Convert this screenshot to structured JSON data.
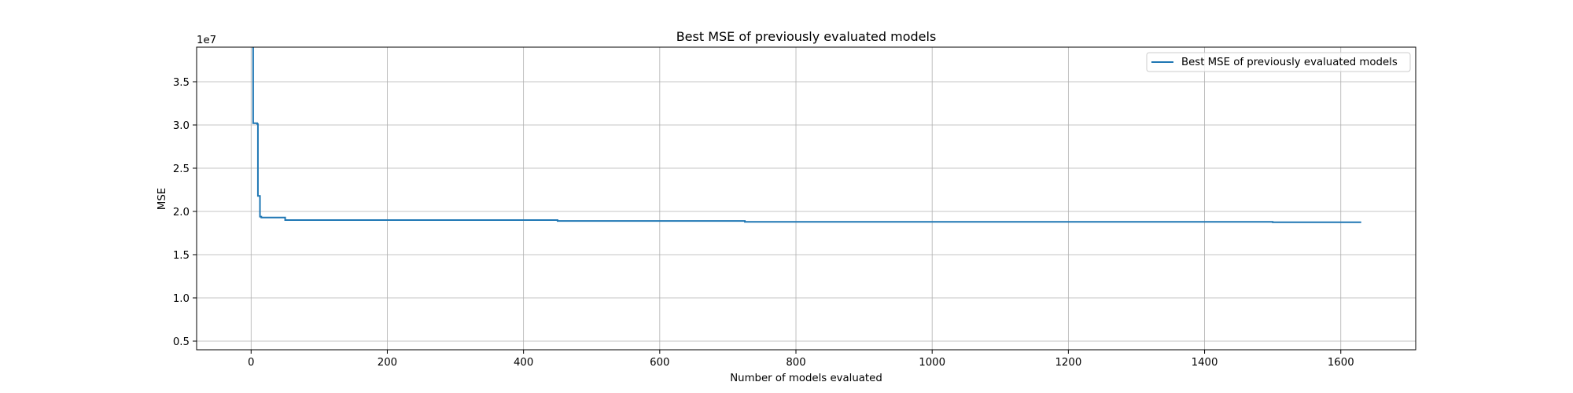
{
  "chart_data": {
    "type": "line",
    "title": "Best MSE of previously evaluated models",
    "xlabel": "Number of models evaluated",
    "ylabel": "MSE",
    "y_offset_label": "1e7",
    "xlim": [
      -80,
      1710
    ],
    "ylim": [
      0.4,
      3.9
    ],
    "x_ticks": [
      0,
      200,
      400,
      600,
      800,
      1000,
      1200,
      1400,
      1600
    ],
    "x_tick_labels": [
      "0",
      "200",
      "400",
      "600",
      "800",
      "1000",
      "1200",
      "1400",
      "1600"
    ],
    "y_ticks": [
      0.5,
      1.0,
      1.5,
      2.0,
      2.5,
      3.0,
      3.5
    ],
    "y_tick_labels": [
      "0.5",
      "1.0",
      "1.5",
      "2.0",
      "2.5",
      "3.0",
      "3.5"
    ],
    "grid": true,
    "legend_position": "top-right",
    "series": [
      {
        "name": "Best MSE of previously evaluated models",
        "color": "#1f77b4",
        "step": "post",
        "x": [
          2,
          3,
          9,
          10,
          13,
          15,
          50,
          380,
          450,
          725,
          1500,
          1630
        ],
        "y": [
          3.9,
          3.02,
          3.01,
          2.18,
          1.94,
          1.93,
          1.9,
          1.9,
          1.89,
          1.88,
          1.875,
          1.875
        ]
      }
    ]
  }
}
